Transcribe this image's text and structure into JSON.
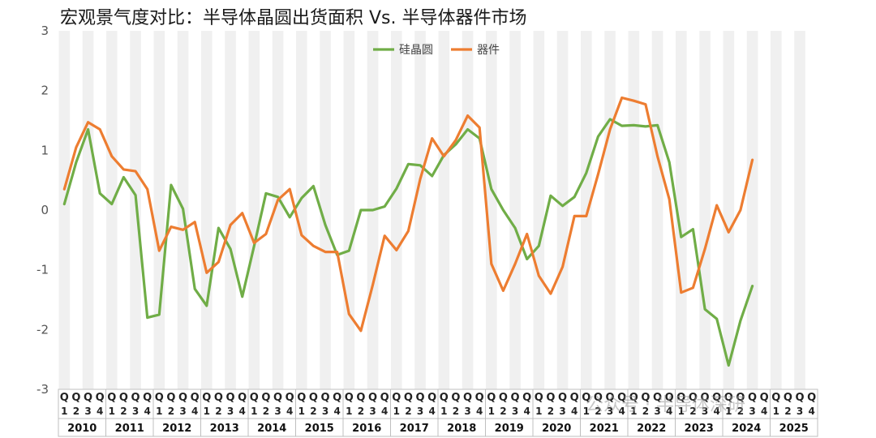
{
  "chart_data": {
    "type": "line",
    "title": "宏观景气度对比：半导体晶圆出货面积 Vs. 半导体器件市场",
    "ylim": [
      -3,
      3
    ],
    "yticks": [
      3,
      2,
      1,
      0,
      -1,
      -2,
      -3
    ],
    "years": [
      "2010",
      "2011",
      "2012",
      "2013",
      "2014",
      "2015",
      "2016",
      "2017",
      "2018",
      "2019",
      "2020",
      "2021",
      "2022",
      "2023",
      "2024",
      "2025"
    ],
    "quarter_letter": "Q",
    "quarters": [
      "1",
      "2",
      "3",
      "4"
    ],
    "legend_position": "top-center",
    "colors": {
      "wafer": "#70ad47",
      "device": "#ed7d31",
      "band": "#f0f0f0"
    },
    "series": [
      {
        "name": "硅晶圆",
        "key": "wafer",
        "values": [
          0.1,
          0.8,
          1.35,
          0.28,
          0.1,
          0.55,
          0.25,
          -1.8,
          -1.75,
          0.42,
          0.02,
          -1.32,
          -1.6,
          -0.3,
          -0.65,
          -1.45,
          -0.6,
          0.28,
          0.22,
          -0.12,
          0.2,
          0.4,
          -0.25,
          -0.75,
          -0.68,
          0.0,
          0.0,
          0.06,
          0.36,
          0.77,
          0.75,
          0.57,
          0.92,
          1.1,
          1.35,
          1.2,
          0.35,
          0.0,
          -0.3,
          -0.82,
          -0.6,
          0.24,
          0.07,
          0.22,
          0.62,
          1.23,
          1.52,
          1.41,
          1.42,
          1.4,
          1.42,
          0.8,
          -0.45,
          -0.32,
          -1.66,
          -1.82,
          -2.6,
          -1.85,
          -1.27
        ]
      },
      {
        "name": "器件",
        "key": "device",
        "values": [
          0.35,
          1.05,
          1.47,
          1.35,
          0.9,
          0.68,
          0.65,
          0.35,
          -0.68,
          -0.28,
          -0.33,
          -0.2,
          -1.05,
          -0.87,
          -0.25,
          -0.05,
          -0.55,
          -0.4,
          0.17,
          0.35,
          -0.42,
          -0.6,
          -0.7,
          -0.7,
          -1.74,
          -2.02,
          -1.25,
          -0.43,
          -0.67,
          -0.35,
          0.52,
          1.2,
          0.9,
          1.17,
          1.58,
          1.38,
          -0.9,
          -1.35,
          -0.9,
          -0.4,
          -1.1,
          -1.4,
          -0.95,
          -0.1,
          -0.1,
          0.6,
          1.35,
          1.88,
          1.83,
          1.77,
          0.9,
          0.18,
          -1.38,
          -1.3,
          -0.65,
          0.08,
          -0.37,
          0.0,
          0.84
        ]
      }
    ]
  },
  "watermark": "公众号 · 半导体深研"
}
